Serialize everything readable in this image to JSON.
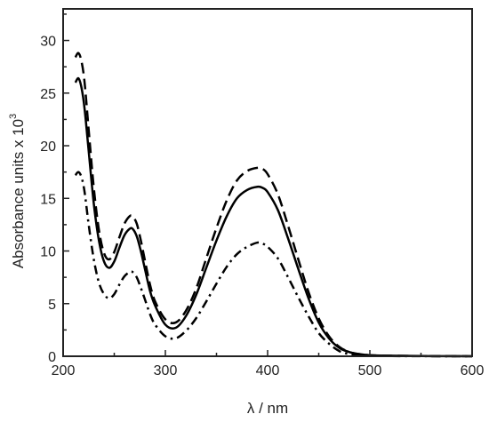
{
  "chart_data": {
    "type": "line",
    "xlabel": "λ / nm",
    "ylabel": "Absorbance units x 10",
    "ylabel_superscript": "3",
    "xlim": [
      200,
      600
    ],
    "ylim": [
      0,
      33
    ],
    "x_ticks": [
      200,
      300,
      400,
      500,
      600
    ],
    "y_ticks": [
      0,
      5,
      10,
      15,
      20,
      25,
      30
    ],
    "grid": false,
    "legend": "none",
    "series": [
      {
        "style": "solid",
        "color": "#000000",
        "x": [
          212,
          215,
          218,
          221,
          225,
          230,
          235,
          240,
          245,
          250,
          255,
          260,
          265,
          268,
          272,
          276,
          280,
          285,
          290,
          300,
          310,
          320,
          330,
          340,
          350,
          360,
          370,
          380,
          390,
          395,
          400,
          410,
          420,
          430,
          440,
          450,
          460,
          470,
          480,
          490,
          500,
          520,
          550,
          580,
          600
        ],
        "y": [
          26.0,
          26.4,
          25.5,
          23.5,
          19.5,
          14.5,
          11.0,
          9.0,
          8.4,
          9.0,
          10.3,
          11.5,
          12.1,
          12.1,
          11.4,
          10.0,
          8.3,
          6.2,
          4.8,
          3.0,
          2.7,
          3.8,
          5.8,
          8.4,
          11.0,
          13.3,
          15.0,
          15.8,
          16.1,
          16.0,
          15.6,
          13.9,
          11.2,
          8.3,
          5.5,
          3.2,
          1.7,
          0.8,
          0.4,
          0.2,
          0.1,
          0.05,
          0.02,
          0.01,
          0.0
        ]
      },
      {
        "style": "dashed",
        "color": "#000000",
        "x": [
          212,
          215,
          218,
          221,
          225,
          230,
          235,
          240,
          245,
          250,
          255,
          260,
          265,
          268,
          272,
          276,
          280,
          285,
          290,
          300,
          310,
          320,
          330,
          340,
          350,
          360,
          370,
          380,
          390,
          395,
          400,
          410,
          420,
          430,
          440,
          450,
          460,
          470,
          480,
          490,
          500,
          520,
          550,
          580,
          600
        ],
        "y": [
          28.4,
          28.8,
          28.0,
          26.0,
          21.5,
          16.0,
          12.0,
          9.8,
          9.2,
          9.9,
          11.3,
          12.6,
          13.3,
          13.3,
          12.6,
          11.0,
          9.1,
          6.8,
          5.2,
          3.5,
          3.2,
          4.3,
          6.4,
          9.3,
          12.2,
          14.8,
          16.7,
          17.6,
          17.9,
          17.8,
          17.3,
          15.4,
          12.4,
          9.2,
          6.1,
          3.6,
          1.9,
          0.9,
          0.4,
          0.2,
          0.1,
          0.05,
          0.02,
          0.01,
          0.0
        ]
      },
      {
        "style": "dash-dot",
        "color": "#000000",
        "x": [
          212,
          215,
          218,
          221,
          225,
          230,
          235,
          240,
          245,
          250,
          255,
          260,
          265,
          268,
          272,
          276,
          280,
          285,
          290,
          300,
          310,
          320,
          330,
          340,
          350,
          360,
          370,
          380,
          390,
          395,
          400,
          410,
          420,
          430,
          440,
          450,
          460,
          470,
          480,
          490,
          500,
          520,
          550,
          580,
          600
        ],
        "y": [
          17.2,
          17.5,
          17.0,
          15.6,
          12.5,
          9.2,
          7.0,
          5.9,
          5.5,
          5.9,
          6.8,
          7.6,
          8.0,
          8.0,
          7.5,
          6.5,
          5.4,
          4.0,
          3.0,
          1.9,
          1.7,
          2.4,
          3.6,
          5.2,
          6.9,
          8.5,
          9.7,
          10.4,
          10.8,
          10.7,
          10.4,
          9.3,
          7.5,
          5.6,
          3.8,
          2.2,
          1.2,
          0.5,
          0.2,
          0.1,
          0.05,
          0.02,
          0.01,
          0.0,
          0.0
        ]
      }
    ]
  }
}
